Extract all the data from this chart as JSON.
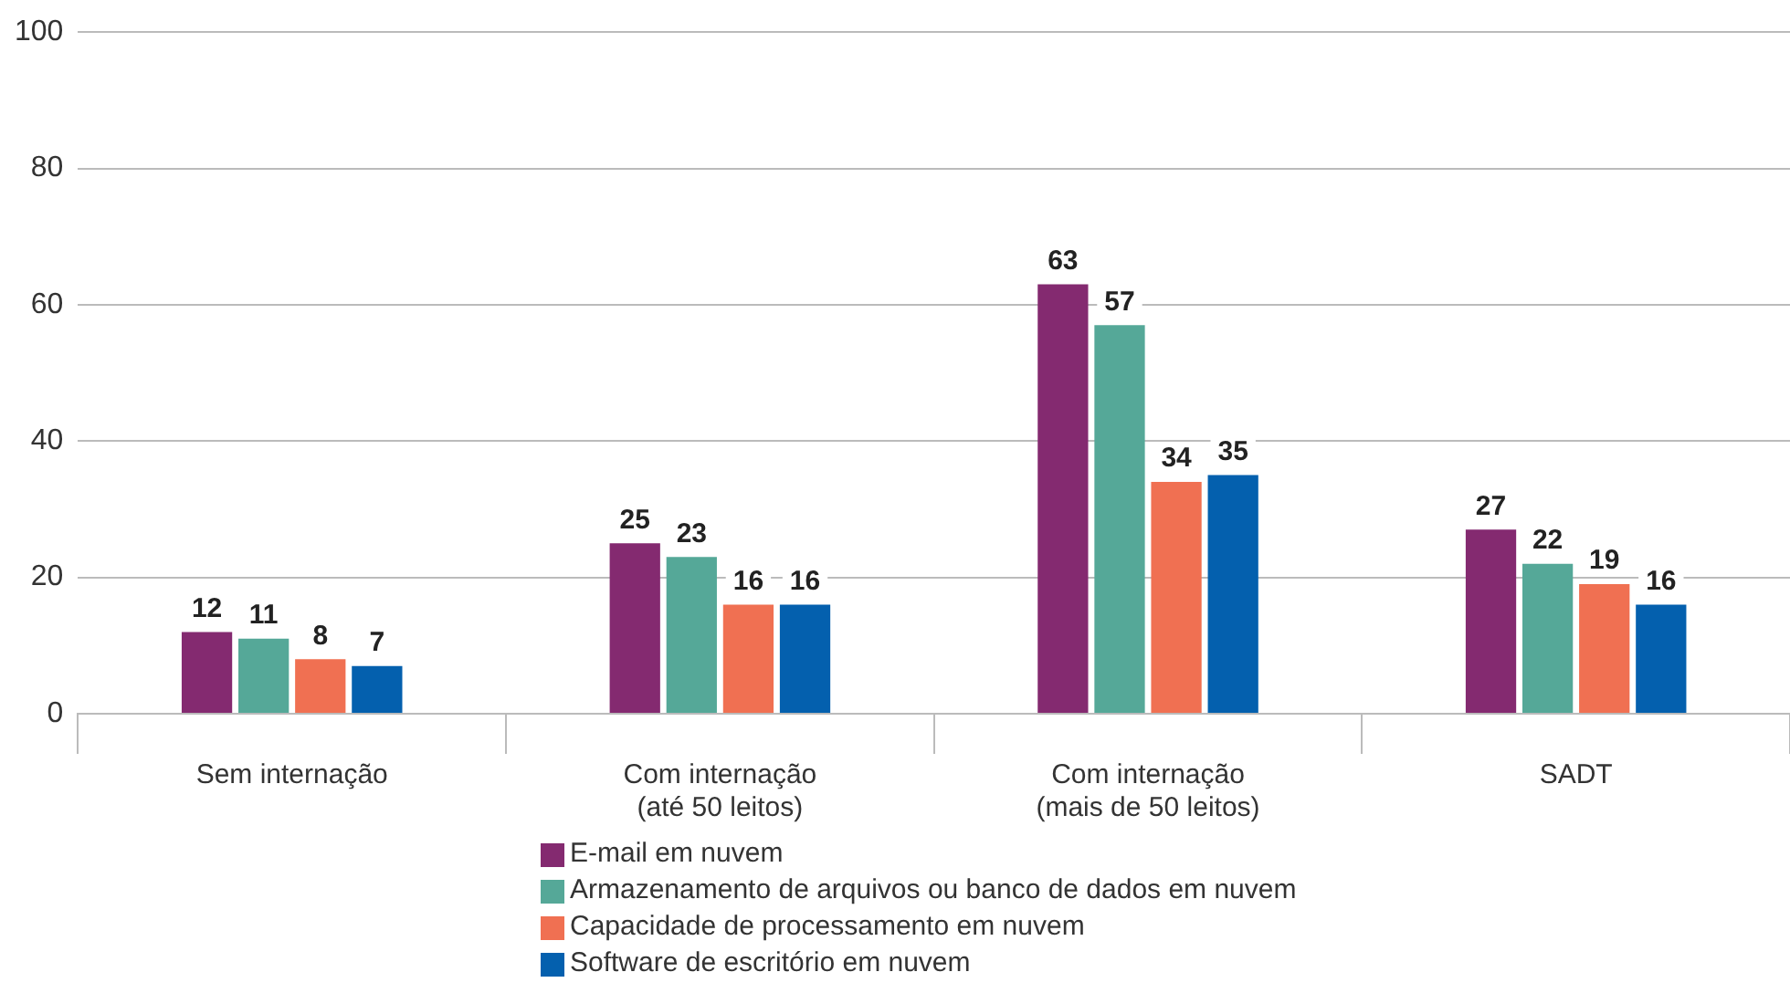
{
  "chart_data": {
    "type": "bar",
    "categories": [
      "Sem internação",
      "Com internação\n(até 50 leitos)",
      "Com internação\n(mais de 50 leitos)",
      "SADT"
    ],
    "series": [
      {
        "name": "E-mail em nuvem",
        "color": "#842a70",
        "values": [
          12,
          25,
          63,
          27
        ]
      },
      {
        "name": "Armazenamento de arquivos ou banco de dados em nuvem",
        "color": "#55a898",
        "values": [
          11,
          23,
          57,
          22
        ]
      },
      {
        "name": "Capacidade de processamento em nuvem",
        "color": "#f07052",
        "values": [
          8,
          16,
          34,
          19
        ]
      },
      {
        "name": "Software de escritório em nuvem",
        "color": "#0460ae",
        "values": [
          7,
          16,
          35,
          16
        ]
      }
    ],
    "ylim": [
      0,
      100
    ],
    "yticks": [
      0,
      20,
      40,
      60,
      80,
      100
    ],
    "grid": "y",
    "legend": "bottom",
    "data_labels": true
  }
}
